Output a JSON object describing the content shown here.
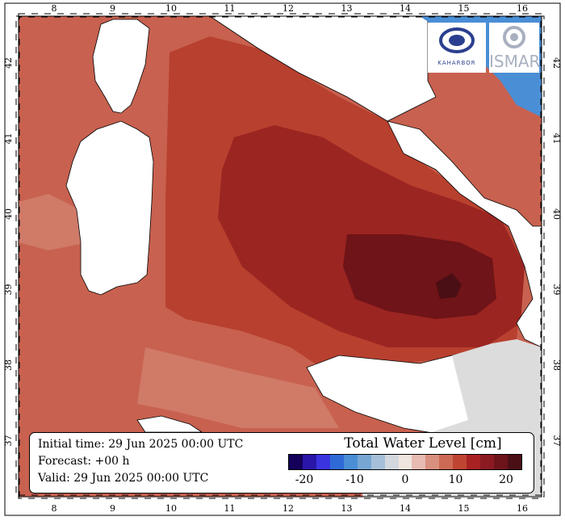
{
  "map": {
    "lon_ticks": [
      "8",
      "9",
      "10",
      "11",
      "12",
      "13",
      "14",
      "15",
      "16"
    ],
    "lat_ticks": [
      "42",
      "41",
      "40",
      "39",
      "38",
      "37"
    ],
    "colors": {
      "land": "#ffffff",
      "land_outside_domain": "#dcdcdc",
      "sea_low": "#c8614f",
      "sea_mid": "#b8402f",
      "sea_high": "#9b2521",
      "sea_peak": "#6f1418",
      "negative_sea": "#4a8ed6"
    }
  },
  "info": {
    "initial": "Initial time: 29 Jun 2025 00:00 UTC",
    "forecast": "Forecast: +00 h",
    "valid": "Valid: 29 Jun 2025 00:00 UTC"
  },
  "legend": {
    "title": "Total Water Level [cm]",
    "colors": [
      "#14005a",
      "#2a16a8",
      "#3a34e0",
      "#2f6ad8",
      "#4a8ed6",
      "#78a6d4",
      "#a6bfd8",
      "#d2d8de",
      "#efe5df",
      "#e7bbb1",
      "#d9907f",
      "#cc6a56",
      "#bf4531",
      "#a92222",
      "#8c1a22",
      "#6d141b",
      "#4a0f14"
    ],
    "labels": [
      "-20",
      "-10",
      "0",
      "10",
      "20"
    ]
  },
  "logos": {
    "left_text": "KAHARBOR",
    "right_text": "ISMAR"
  }
}
